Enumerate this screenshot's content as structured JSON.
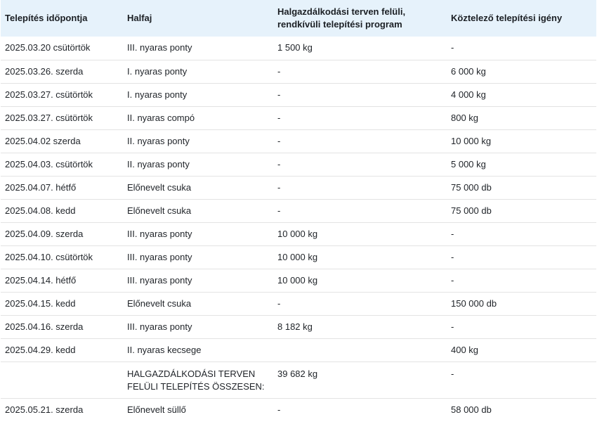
{
  "headers": [
    "Telepítés időpontja",
    "Halfaj",
    "Halgazdálkodási terven felüli, rendkívüli telepítési program",
    "Köztelező telepítési igény"
  ],
  "rows": [
    [
      "2025.03.20 csütörtök",
      "III. nyaras ponty",
      "1 500 kg",
      "-"
    ],
    [
      "2025.03.26. szerda",
      "I. nyaras ponty",
      "-",
      "6 000 kg"
    ],
    [
      "2025.03.27. csütörtök",
      "I. nyaras ponty",
      "-",
      "4 000 kg"
    ],
    [
      "2025.03.27. csütörtök",
      "II. nyaras compó",
      "-",
      "800 kg"
    ],
    [
      "2025.04.02 szerda",
      "II. nyaras ponty",
      "-",
      "10 000 kg"
    ],
    [
      "2025.04.03. csütörtök",
      "II. nyaras ponty",
      "-",
      "5 000 kg"
    ],
    [
      "2025.04.07. hétfő",
      "Előnevelt csuka",
      "-",
      "75 000 db"
    ],
    [
      "2025.04.08. kedd",
      "Előnevelt csuka",
      "-",
      "75 000 db"
    ],
    [
      "2025.04.09. szerda",
      "III. nyaras ponty",
      "10 000 kg",
      "-"
    ],
    [
      "2025.04.10. csütörtök",
      "III. nyaras ponty",
      "10 000 kg",
      "-"
    ],
    [
      "2025.04.14. hétfő",
      "III. nyaras ponty",
      "10 000 kg",
      "-"
    ],
    [
      "2025.04.15. kedd",
      "Előnevelt csuka",
      "-",
      "150 000 db"
    ],
    [
      "2025.04.16. szerda",
      "III. nyaras ponty",
      "8 182 kg",
      "-"
    ],
    [
      "2025.04.29. kedd",
      "II. nyaras kecsege",
      "",
      "400 kg"
    ],
    [
      "",
      "HALGAZDÁLKODÁSI TERVEN FELÜLI TELEPÍTÉS ÖSSZESEN:",
      "39 682 kg",
      "-"
    ],
    [
      "2025.05.21. szerda",
      "Előnevelt süllő",
      "-",
      "58 000 db"
    ]
  ]
}
